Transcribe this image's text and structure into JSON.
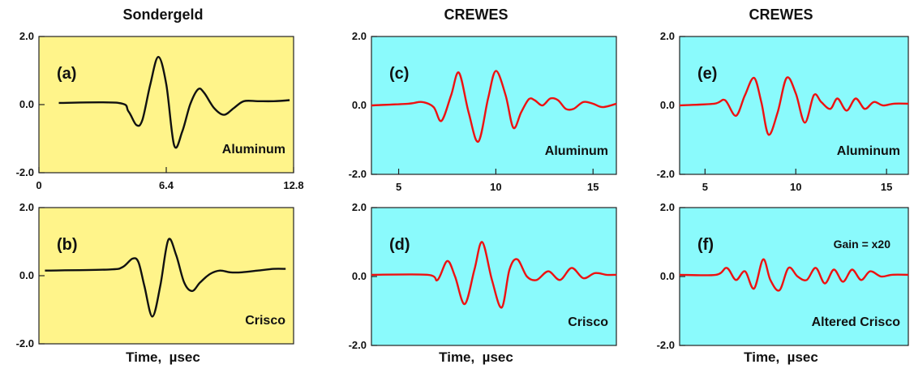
{
  "columns": [
    {
      "title": "Sondergeld",
      "xlabel": "Time,  µsec"
    },
    {
      "title": "CREWES",
      "xlabel": "Time,  µsec"
    },
    {
      "title": "CREWES",
      "xlabel": "Time,  µsec"
    }
  ],
  "colors": {
    "sondergeld_bg": "#fff48a",
    "crewes_bg": "#8afafc",
    "sondergeld_trace": "#111111",
    "crewes_trace": "#ee1111"
  },
  "chart_data": [
    {
      "id": "a",
      "type": "line",
      "label": "(a)",
      "annotation": "Aluminum",
      "gain": "",
      "ylim": [
        -2.0,
        2.0
      ],
      "yticks": [
        "2.0",
        "0.0",
        "-2.0"
      ],
      "xlim": [
        0,
        12.8
      ],
      "xticks": [
        {
          "v": 0,
          "t": "0"
        },
        {
          "v": 6.4,
          "t": "6.4"
        },
        {
          "v": 12.8,
          "t": "12.8"
        }
      ],
      "x": [
        1.0,
        4.0,
        4.5,
        4.9,
        5.2,
        5.6,
        6.0,
        6.4,
        6.8,
        7.2,
        7.6,
        8.0,
        8.3,
        8.8,
        9.3,
        9.8,
        10.3,
        11.0,
        11.8,
        12.6
      ],
      "y": [
        0.05,
        0.05,
        -0.2,
        -0.6,
        -0.45,
        0.6,
        1.4,
        0.6,
        -1.2,
        -0.8,
        0.0,
        0.45,
        0.35,
        -0.1,
        -0.3,
        -0.1,
        0.1,
        0.1,
        0.1,
        0.13
      ]
    },
    {
      "id": "b",
      "type": "line",
      "label": "(b)",
      "annotation": "Crisco",
      "gain": "",
      "ylim": [
        -2.0,
        2.0
      ],
      "yticks": [
        "2.0",
        "0.0",
        "-2.0"
      ],
      "xlim": [
        0,
        12.8
      ],
      "xticks": [],
      "x": [
        0.3,
        3.5,
        4.2,
        4.7,
        5.0,
        5.3,
        5.7,
        6.1,
        6.5,
        6.9,
        7.3,
        7.7,
        8.1,
        8.6,
        9.1,
        9.6,
        10.2,
        11.0,
        11.8,
        12.4
      ],
      "y": [
        0.15,
        0.18,
        0.25,
        0.5,
        0.4,
        -0.3,
        -1.2,
        -0.3,
        1.05,
        0.6,
        -0.2,
        -0.45,
        -0.2,
        0.05,
        0.15,
        0.1,
        0.1,
        0.15,
        0.2,
        0.2
      ]
    },
    {
      "id": "c",
      "type": "line",
      "label": "(c)",
      "annotation": "Aluminum",
      "gain": "",
      "ylim": [
        -2.0,
        2.0
      ],
      "yticks": [
        "2.0",
        "0.0",
        "-2.0"
      ],
      "xlim": [
        3.6,
        16.2
      ],
      "xticks": [
        {
          "v": 5,
          "t": "5"
        },
        {
          "v": 10,
          "t": "10"
        },
        {
          "v": 15,
          "t": "15"
        }
      ],
      "x": [
        3.6,
        5.5,
        6.2,
        6.8,
        7.2,
        7.7,
        8.1,
        8.6,
        9.1,
        9.6,
        10.0,
        10.5,
        10.9,
        11.3,
        11.7,
        12.0,
        12.4,
        12.8,
        13.2,
        13.6,
        14.0,
        14.5,
        15.0,
        15.5,
        16.2
      ],
      "y": [
        0.0,
        0.05,
        0.1,
        -0.05,
        -0.45,
        0.3,
        0.95,
        -0.2,
        -1.05,
        0.2,
        1.0,
        0.3,
        -0.65,
        -0.2,
        0.18,
        0.15,
        0.0,
        0.2,
        0.15,
        -0.1,
        -0.1,
        0.1,
        0.05,
        -0.05,
        0.05
      ]
    },
    {
      "id": "d",
      "type": "line",
      "label": "(d)",
      "annotation": "Crisco",
      "gain": "",
      "ylim": [
        -2.0,
        2.0
      ],
      "yticks": [
        "2.0",
        "0.0",
        "-2.0"
      ],
      "xlim": [
        3.6,
        16.2
      ],
      "xticks": [],
      "x": [
        3.6,
        6.5,
        7.0,
        7.5,
        7.9,
        8.4,
        8.9,
        9.3,
        9.8,
        10.3,
        10.7,
        11.1,
        11.6,
        12.1,
        12.7,
        13.3,
        13.9,
        14.5,
        15.1,
        15.7,
        16.2
      ],
      "y": [
        0.05,
        0.05,
        -0.1,
        0.45,
        0.0,
        -0.8,
        0.2,
        1.0,
        -0.1,
        -0.9,
        0.2,
        0.5,
        0.0,
        -0.1,
        0.15,
        -0.1,
        0.25,
        -0.05,
        0.1,
        0.05,
        0.05
      ]
    },
    {
      "id": "e",
      "type": "line",
      "label": "(e)",
      "annotation": "Aluminum",
      "gain": "",
      "ylim": [
        -2.0,
        2.0
      ],
      "yticks": [
        "2.0",
        "0.0",
        "-2.0"
      ],
      "xlim": [
        3.6,
        16.2
      ],
      "xticks": [
        {
          "v": 5,
          "t": "5"
        },
        {
          "v": 10,
          "t": "10"
        },
        {
          "v": 15,
          "t": "15"
        }
      ],
      "x": [
        3.6,
        5.5,
        6.1,
        6.7,
        7.2,
        7.7,
        8.1,
        8.5,
        9.0,
        9.5,
        10.0,
        10.5,
        11.0,
        11.4,
        11.9,
        12.3,
        12.8,
        13.3,
        13.8,
        14.3,
        14.8,
        15.4,
        16.2
      ],
      "y": [
        0.0,
        0.05,
        0.15,
        -0.3,
        0.3,
        0.8,
        0.1,
        -0.85,
        -0.2,
        0.8,
        0.35,
        -0.5,
        0.3,
        0.1,
        -0.1,
        0.2,
        -0.15,
        0.2,
        -0.1,
        0.1,
        0.0,
        0.05,
        0.05
      ]
    },
    {
      "id": "f",
      "type": "line",
      "label": "(f)",
      "annotation": "Altered Crisco",
      "gain": "Gain = x20",
      "ylim": [
        -2.0,
        2.0
      ],
      "yticks": [
        "2.0",
        "0.0",
        "-2.0"
      ],
      "xlim": [
        3.6,
        16.2
      ],
      "xticks": [],
      "x": [
        3.6,
        5.6,
        6.2,
        6.7,
        7.2,
        7.7,
        8.2,
        8.6,
        9.1,
        9.6,
        10.1,
        10.6,
        11.1,
        11.6,
        12.1,
        12.6,
        13.1,
        13.6,
        14.1,
        14.7,
        15.3,
        16.2
      ],
      "y": [
        0.05,
        0.05,
        0.25,
        -0.1,
        0.15,
        -0.35,
        0.5,
        -0.1,
        -0.4,
        0.25,
        0.0,
        -0.1,
        0.25,
        -0.2,
        0.2,
        -0.15,
        0.2,
        -0.1,
        0.15,
        0.0,
        0.05,
        0.05
      ]
    }
  ]
}
